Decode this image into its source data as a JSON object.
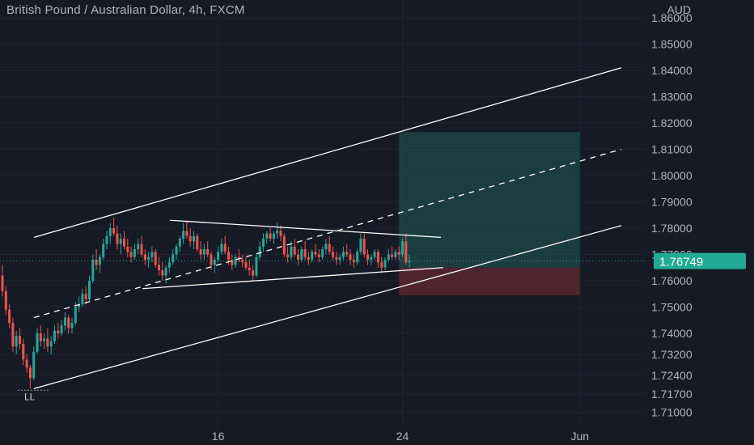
{
  "header": {
    "title": "British Pound / Australian Dollar, 4h, FXCM",
    "currency": "AUD"
  },
  "colors": {
    "background": "#161a25",
    "up": "#26a69a",
    "down": "#ef5350",
    "line": "#ffffff",
    "target_zone": "#1f4a4a",
    "stop_zone": "#5a2730",
    "price_tag": "#22ab94"
  },
  "chart_data": {
    "type": "candlestick",
    "symbol": "GBPAUD",
    "interval": "4h",
    "y_ticks": [
      1.86,
      1.85,
      1.84,
      1.83,
      1.82,
      1.81,
      1.8,
      1.79,
      1.78,
      1.77,
      1.76,
      1.75,
      1.74,
      1.732,
      1.724,
      1.717,
      1.71
    ],
    "y_tick_labels": [
      "1.86000",
      "1.85000",
      "1.84000",
      "1.83000",
      "1.82000",
      "1.81000",
      "1.80000",
      "1.79000",
      "1.78000",
      "1.77000",
      "1.76000",
      "1.75000",
      "1.74000",
      "1.73200",
      "1.72400",
      "1.71700",
      "1.71000"
    ],
    "x_ticks": [
      {
        "label": "16",
        "index": 62
      },
      {
        "label": "24",
        "index": 115
      },
      {
        "label": "Jun",
        "index": 166
      }
    ],
    "last_price": 1.76749,
    "last_price_label": "1.76749",
    "annotation": "LL",
    "candles": [
      [
        1.762,
        1.766,
        1.754,
        1.756
      ],
      [
        1.756,
        1.758,
        1.747,
        1.749
      ],
      [
        1.749,
        1.751,
        1.742,
        1.744
      ],
      [
        1.744,
        1.746,
        1.733,
        1.735
      ],
      [
        1.735,
        1.741,
        1.732,
        1.739
      ],
      [
        1.739,
        1.742,
        1.734,
        1.736
      ],
      [
        1.736,
        1.738,
        1.728,
        1.73
      ],
      [
        1.73,
        1.732,
        1.725,
        1.727
      ],
      [
        1.727,
        1.728,
        1.719,
        1.723
      ],
      [
        1.723,
        1.735,
        1.722,
        1.733
      ],
      [
        1.733,
        1.742,
        1.732,
        1.74
      ],
      [
        1.74,
        1.743,
        1.735,
        1.737
      ],
      [
        1.737,
        1.74,
        1.734,
        1.738
      ],
      [
        1.738,
        1.742,
        1.733,
        1.735
      ],
      [
        1.735,
        1.739,
        1.732,
        1.737
      ],
      [
        1.737,
        1.743,
        1.736,
        1.741
      ],
      [
        1.741,
        1.744,
        1.738,
        1.74
      ],
      [
        1.74,
        1.745,
        1.739,
        1.743
      ],
      [
        1.743,
        1.748,
        1.741,
        1.746
      ],
      [
        1.746,
        1.747,
        1.74,
        1.742
      ],
      [
        1.742,
        1.746,
        1.74,
        1.744
      ],
      [
        1.744,
        1.752,
        1.743,
        1.75
      ],
      [
        1.75,
        1.754,
        1.748,
        1.751
      ],
      [
        1.751,
        1.757,
        1.75,
        1.755
      ],
      [
        1.755,
        1.758,
        1.751,
        1.753
      ],
      [
        1.753,
        1.762,
        1.752,
        1.76
      ],
      [
        1.76,
        1.77,
        1.759,
        1.768
      ],
      [
        1.768,
        1.772,
        1.764,
        1.766
      ],
      [
        1.766,
        1.77,
        1.763,
        1.769
      ],
      [
        1.769,
        1.776,
        1.768,
        1.774
      ],
      [
        1.774,
        1.779,
        1.772,
        1.777
      ],
      [
        1.777,
        1.782,
        1.774,
        1.78
      ],
      [
        1.78,
        1.784,
        1.777,
        1.778
      ],
      [
        1.778,
        1.781,
        1.772,
        1.774
      ],
      [
        1.774,
        1.778,
        1.77,
        1.776
      ],
      [
        1.776,
        1.779,
        1.772,
        1.773
      ],
      [
        1.773,
        1.776,
        1.769,
        1.771
      ],
      [
        1.771,
        1.773,
        1.767,
        1.769
      ],
      [
        1.769,
        1.774,
        1.768,
        1.772
      ],
      [
        1.772,
        1.776,
        1.77,
        1.774
      ],
      [
        1.774,
        1.777,
        1.769,
        1.77
      ],
      [
        1.77,
        1.772,
        1.766,
        1.768
      ],
      [
        1.768,
        1.771,
        1.765,
        1.769
      ],
      [
        1.769,
        1.773,
        1.767,
        1.771
      ],
      [
        1.771,
        1.772,
        1.765,
        1.766
      ],
      [
        1.766,
        1.769,
        1.762,
        1.764
      ],
      [
        1.764,
        1.767,
        1.76,
        1.762
      ],
      [
        1.762,
        1.766,
        1.759,
        1.765
      ],
      [
        1.765,
        1.769,
        1.763,
        1.767
      ],
      [
        1.767,
        1.772,
        1.766,
        1.77
      ],
      [
        1.77,
        1.774,
        1.768,
        1.773
      ],
      [
        1.773,
        1.777,
        1.771,
        1.776
      ],
      [
        1.776,
        1.782,
        1.774,
        1.779
      ],
      [
        1.779,
        1.783,
        1.776,
        1.777
      ],
      [
        1.777,
        1.78,
        1.773,
        1.775
      ],
      [
        1.775,
        1.779,
        1.772,
        1.777
      ],
      [
        1.777,
        1.778,
        1.771,
        1.772
      ],
      [
        1.772,
        1.775,
        1.768,
        1.77
      ],
      [
        1.77,
        1.774,
        1.768,
        1.772
      ],
      [
        1.772,
        1.775,
        1.769,
        1.77
      ],
      [
        1.77,
        1.771,
        1.764,
        1.766
      ],
      [
        1.766,
        1.769,
        1.763,
        1.768
      ],
      [
        1.768,
        1.773,
        1.767,
        1.771
      ],
      [
        1.771,
        1.776,
        1.77,
        1.774
      ],
      [
        1.774,
        1.777,
        1.77,
        1.771
      ],
      [
        1.771,
        1.773,
        1.766,
        1.768
      ],
      [
        1.768,
        1.77,
        1.764,
        1.766
      ],
      [
        1.766,
        1.77,
        1.765,
        1.769
      ],
      [
        1.769,
        1.772,
        1.767,
        1.768
      ],
      [
        1.768,
        1.77,
        1.765,
        1.767
      ],
      [
        1.767,
        1.769,
        1.764,
        1.765
      ],
      [
        1.765,
        1.768,
        1.762,
        1.764
      ],
      [
        1.764,
        1.766,
        1.76,
        1.762
      ],
      [
        1.762,
        1.77,
        1.761,
        1.769
      ],
      [
        1.769,
        1.775,
        1.768,
        1.773
      ],
      [
        1.773,
        1.778,
        1.771,
        1.776
      ],
      [
        1.776,
        1.779,
        1.774,
        1.778
      ],
      [
        1.778,
        1.78,
        1.775,
        1.776
      ],
      [
        1.776,
        1.779,
        1.774,
        1.778
      ],
      [
        1.778,
        1.782,
        1.776,
        1.779
      ],
      [
        1.779,
        1.781,
        1.775,
        1.777
      ],
      [
        1.777,
        1.778,
        1.769,
        1.77
      ],
      [
        1.77,
        1.773,
        1.767,
        1.769
      ],
      [
        1.769,
        1.775,
        1.768,
        1.773
      ],
      [
        1.773,
        1.776,
        1.769,
        1.77
      ],
      [
        1.77,
        1.772,
        1.766,
        1.768
      ],
      [
        1.768,
        1.773,
        1.767,
        1.772
      ],
      [
        1.772,
        1.775,
        1.768,
        1.769
      ],
      [
        1.769,
        1.771,
        1.766,
        1.768
      ],
      [
        1.768,
        1.772,
        1.767,
        1.771
      ],
      [
        1.771,
        1.774,
        1.769,
        1.77
      ],
      [
        1.77,
        1.772,
        1.767,
        1.769
      ],
      [
        1.769,
        1.773,
        1.768,
        1.772
      ],
      [
        1.772,
        1.776,
        1.77,
        1.774
      ],
      [
        1.774,
        1.777,
        1.77,
        1.771
      ],
      [
        1.771,
        1.773,
        1.768,
        1.769
      ],
      [
        1.769,
        1.771,
        1.766,
        1.768
      ],
      [
        1.768,
        1.77,
        1.766,
        1.769
      ],
      [
        1.769,
        1.773,
        1.768,
        1.771
      ],
      [
        1.771,
        1.774,
        1.769,
        1.77
      ],
      [
        1.77,
        1.772,
        1.766,
        1.768
      ],
      [
        1.768,
        1.77,
        1.765,
        1.767
      ],
      [
        1.767,
        1.772,
        1.766,
        1.771
      ],
      [
        1.771,
        1.778,
        1.77,
        1.776
      ],
      [
        1.776,
        1.778,
        1.769,
        1.77
      ],
      [
        1.77,
        1.772,
        1.766,
        1.768
      ],
      [
        1.768,
        1.77,
        1.766,
        1.769
      ],
      [
        1.769,
        1.772,
        1.768,
        1.771
      ],
      [
        1.771,
        1.772,
        1.765,
        1.767
      ],
      [
        1.767,
        1.769,
        1.763,
        1.765
      ],
      [
        1.765,
        1.769,
        1.764,
        1.768
      ],
      [
        1.768,
        1.772,
        1.767,
        1.77
      ],
      [
        1.77,
        1.773,
        1.768,
        1.769
      ],
      [
        1.769,
        1.772,
        1.768,
        1.771
      ],
      [
        1.771,
        1.773,
        1.768,
        1.77
      ],
      [
        1.77,
        1.776,
        1.769,
        1.775
      ],
      [
        1.775,
        1.778,
        1.766,
        1.767
      ],
      [
        1.767,
        1.77,
        1.765,
        1.76749
      ]
    ]
  }
}
